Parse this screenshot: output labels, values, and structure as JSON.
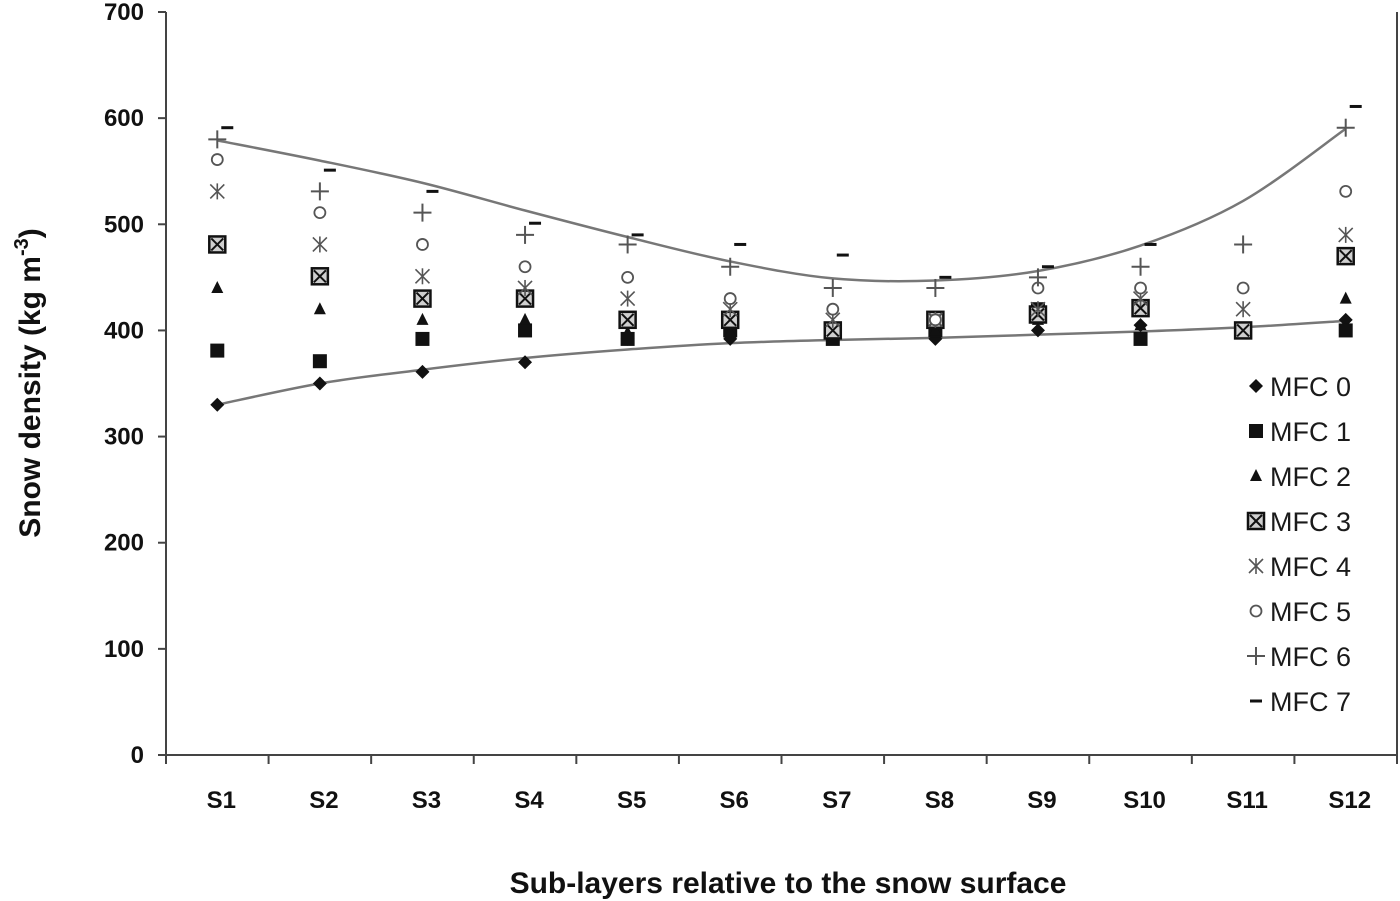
{
  "chart_data": {
    "type": "scatter",
    "title": "",
    "xlabel": "Sub-layers relative to the snow surface",
    "ylabel_main": "Snow density (kg m",
    "ylabel_sup": "-3",
    "ylabel_close": ")",
    "ylim": [
      0,
      700
    ],
    "y_ticks": [
      "0",
      "100",
      "200",
      "300",
      "400",
      "500",
      "600",
      "700"
    ],
    "categories": [
      "S1",
      "S2",
      "S3",
      "S4",
      "S5",
      "S6",
      "S7",
      "S8",
      "S9",
      "S10",
      "S11",
      "S12"
    ],
    "grid": false,
    "legend_position": "right",
    "series": [
      {
        "name": "MFC 0",
        "marker": "diamond",
        "values": [
          330,
          350,
          361,
          370,
          392,
          392,
          393,
          392,
          400,
          405,
          400,
          410
        ]
      },
      {
        "name": "MFC 1",
        "marker": "square",
        "values": [
          381,
          371,
          392,
          400,
          392,
          400,
          392,
          400,
          420,
          392,
          400,
          400
        ]
      },
      {
        "name": "MFC 2",
        "marker": "triangle",
        "values": [
          440,
          420,
          410,
          410,
          398,
          398,
          400,
          400,
          410,
          405,
          400,
          430
        ]
      },
      {
        "name": "MFC 3",
        "marker": "boxed-x",
        "values": [
          481,
          451,
          430,
          430,
          410,
          410,
          400,
          410,
          415,
          421,
          400,
          470
        ]
      },
      {
        "name": "MFC 4",
        "marker": "asterisk",
        "values": [
          531,
          481,
          451,
          440,
          430,
          420,
          410,
          410,
          420,
          430,
          420,
          490
        ]
      },
      {
        "name": "MFC 5",
        "marker": "circle",
        "values": [
          561,
          511,
          481,
          460,
          450,
          430,
          420,
          410,
          440,
          440,
          440,
          531
        ]
      },
      {
        "name": "MFC 6",
        "marker": "plus",
        "values": [
          580,
          531,
          511,
          490,
          481,
          460,
          440,
          440,
          450,
          460,
          481,
          591
        ]
      },
      {
        "name": "MFC 7",
        "marker": "dash",
        "values": [
          591,
          551,
          531,
          501,
          490,
          481,
          471,
          450,
          460,
          481,
          null,
          611
        ]
      }
    ],
    "trend_lines": [
      {
        "values": [
          330,
          350,
          363,
          374,
          382,
          388,
          391,
          393,
          396,
          399,
          403,
          409
        ]
      },
      {
        "values": [
          579,
          560,
          539,
          513,
          488,
          465,
          449,
          447,
          456,
          480,
          522,
          590
        ]
      }
    ],
    "colors": {
      "markers": "#111111",
      "hollow_markers": "#555555",
      "trend_line": "#777777",
      "axis": "#444444"
    }
  }
}
